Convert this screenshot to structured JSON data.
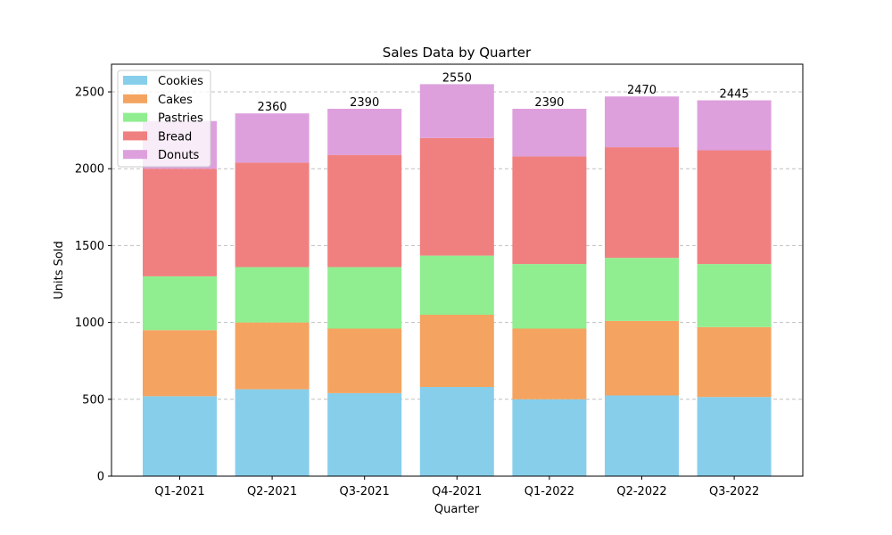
{
  "chart_data": {
    "type": "bar",
    "stacked": true,
    "title": "Sales Data by Quarter",
    "xlabel": "Quarter",
    "ylabel": "Units Sold",
    "ylim": [
      0,
      2680
    ],
    "yticks": [
      0,
      500,
      1000,
      1500,
      2000,
      2500
    ],
    "grid": "y-dashed",
    "legend_position": "top-left",
    "categories": [
      "Q1-2021",
      "Q2-2021",
      "Q3-2021",
      "Q4-2021",
      "Q1-2022",
      "Q2-2022",
      "Q3-2022"
    ],
    "series": [
      {
        "name": "Cookies",
        "color": "#87ceeb",
        "values": [
          520,
          565,
          540,
          580,
          500,
          525,
          515
        ]
      },
      {
        "name": "Cakes",
        "color": "#f4a460",
        "values": [
          430,
          435,
          420,
          470,
          460,
          485,
          455
        ]
      },
      {
        "name": "Pastries",
        "color": "#90ee90",
        "values": [
          350,
          360,
          400,
          385,
          420,
          410,
          410
        ]
      },
      {
        "name": "Bread",
        "color": "#f08080",
        "values": [
          700,
          680,
          730,
          765,
          700,
          720,
          740
        ]
      },
      {
        "name": "Donuts",
        "color": "#dda0dd",
        "values": [
          310,
          320,
          300,
          350,
          310,
          330,
          325
        ]
      }
    ],
    "totals": [
      "",
      "2360",
      "2390",
      "2550",
      "2390",
      "2470",
      "2445"
    ]
  }
}
